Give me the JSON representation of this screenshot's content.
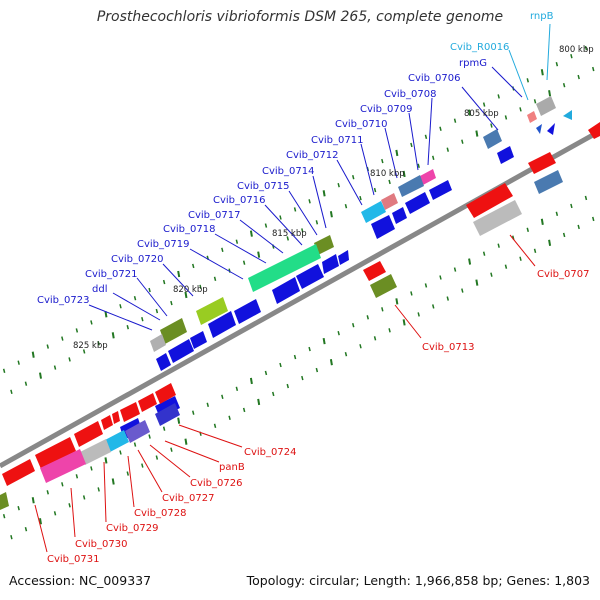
{
  "title": "Prosthecochloris vibrioformis DSM 265, complete genome",
  "footer": {
    "accession": "Accession: NC_009337",
    "stats": "Topology: circular; Length: 1,966,858 bp; Genes: 1,803"
  },
  "colors": {
    "forward_gene": "#1010dd",
    "reverse_gene": "#ee1111",
    "forward_label": "#1a1acc",
    "reverse_label": "#dd1111",
    "rna_label": "#22aadd",
    "tick": "#227722",
    "backbone": "#808080"
  },
  "scale_labels": [
    "800 kbp",
    "805 kbp",
    "810 kbp",
    "815 kbp",
    "820 kbp",
    "825 kbp"
  ],
  "gene_labels_forward": [
    "Cvib_0706",
    "Cvib_0708",
    "Cvib_0709",
    "Cvib_0710",
    "Cvib_0711",
    "Cvib_0712",
    "Cvib_0714",
    "Cvib_0715",
    "Cvib_0716",
    "Cvib_0717",
    "Cvib_0718",
    "Cvib_0719",
    "Cvib_0720",
    "Cvib_0721",
    "ddl",
    "Cvib_0723",
    "rpmG"
  ],
  "gene_labels_rna": [
    "rnpB",
    "Cvib_R0016"
  ],
  "gene_labels_reverse": [
    "Cvib_0707",
    "Cvib_0713",
    "Cvib_0724",
    "panB",
    "Cvib_0726",
    "Cvib_0727",
    "Cvib_0728",
    "Cvib_0729",
    "Cvib_0730",
    "Cvib_0731"
  ]
}
